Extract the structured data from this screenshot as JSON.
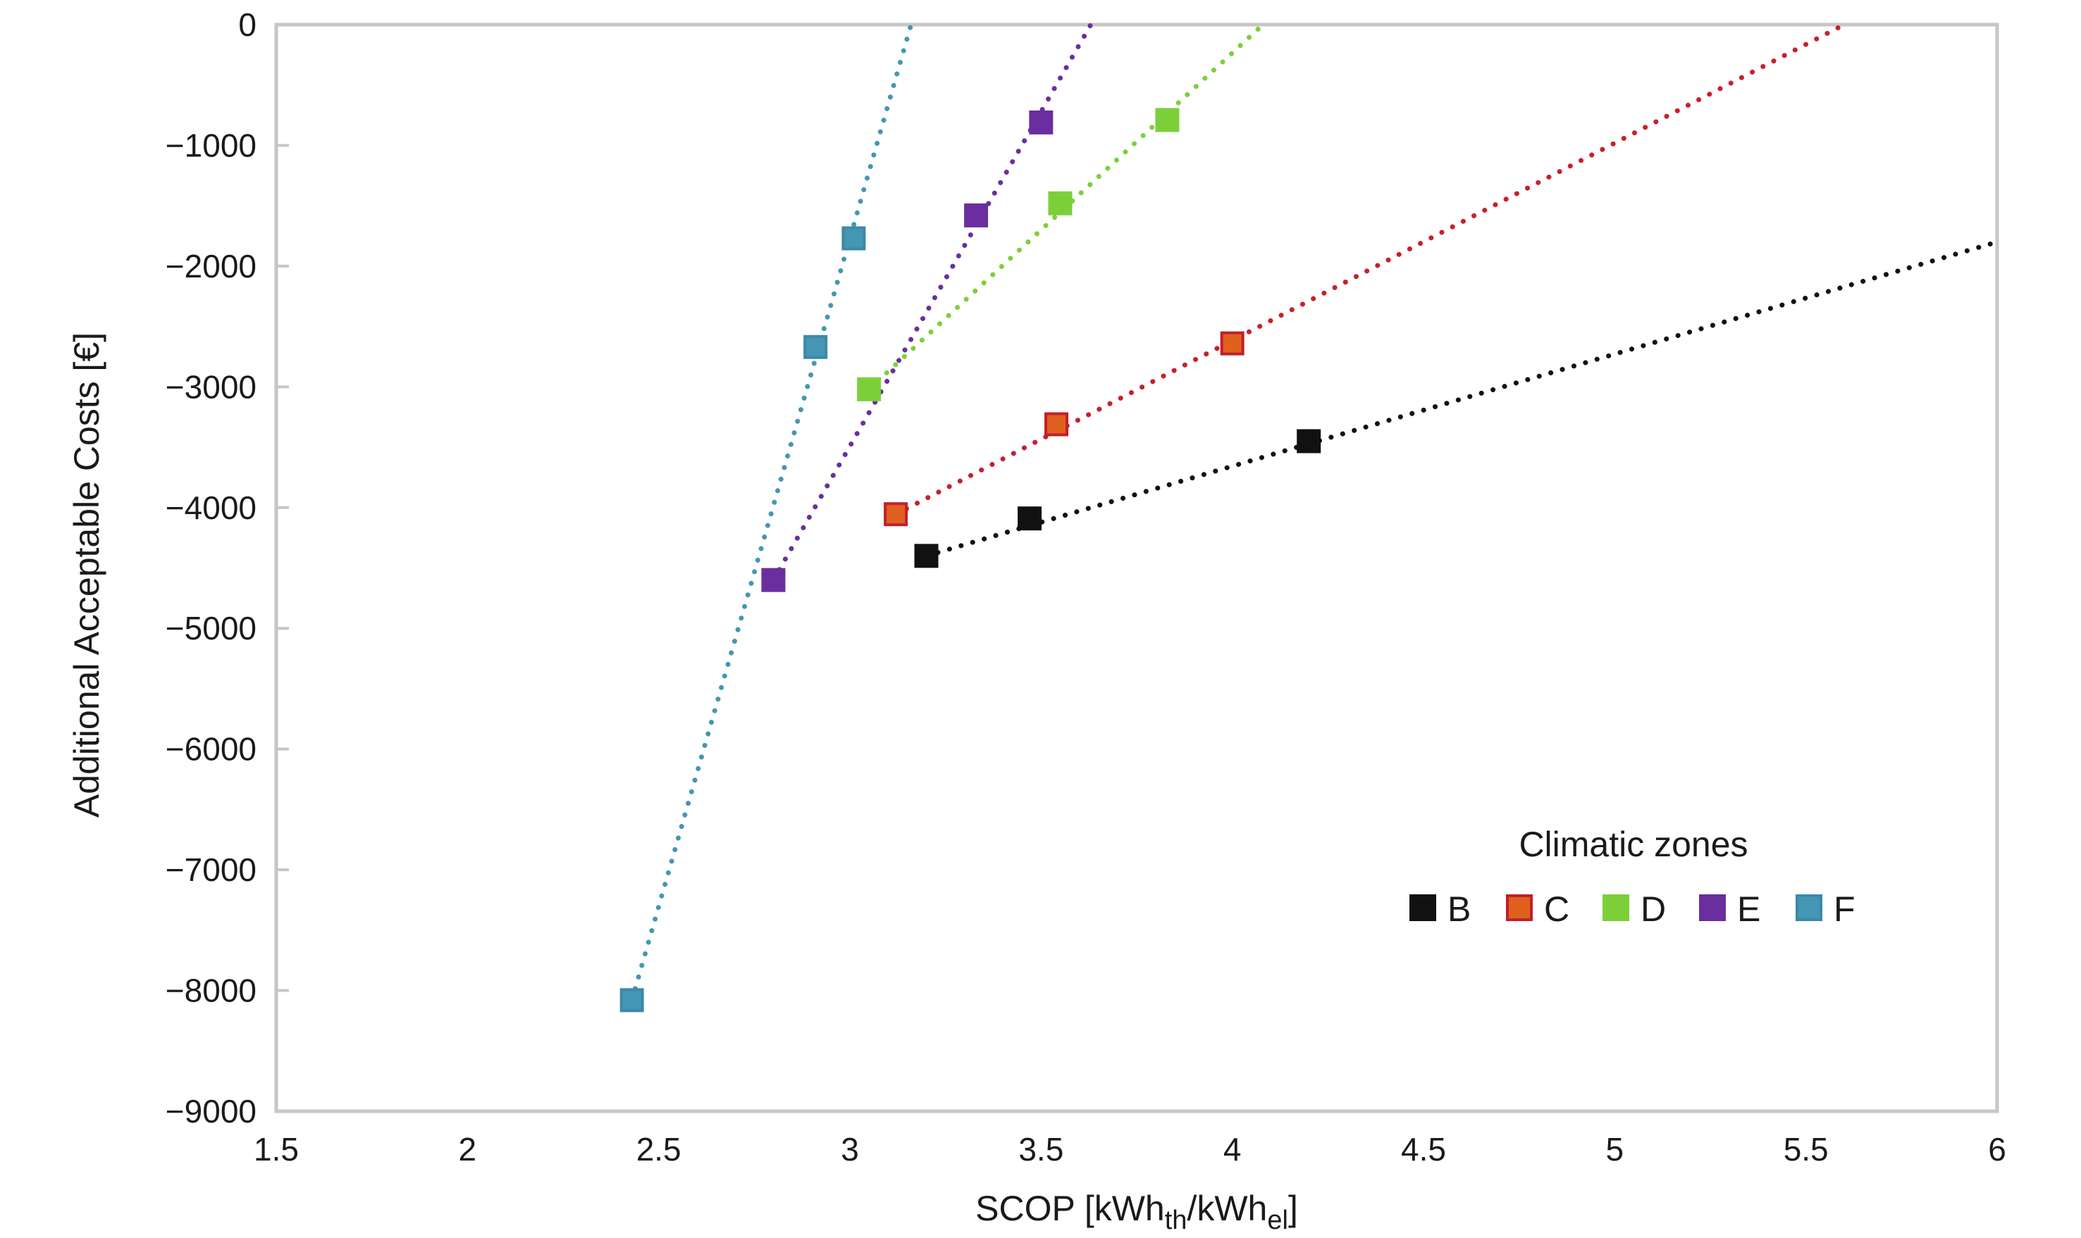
{
  "chart_data": {
    "type": "scatter",
    "title": "",
    "xlabel": "SCOP [kWh_th/kWh_el]",
    "xlabel_parts": {
      "main": "SCOP [kWh",
      "sub1": "th",
      "mid": "/kWh",
      "sub2": "el",
      "end": "]"
    },
    "ylabel": "Additional Acceptable Costs [€]",
    "xlim": [
      1.5,
      6
    ],
    "ylim": [
      -9000,
      0
    ],
    "x_ticks": [
      1.5,
      2,
      2.5,
      3,
      3.5,
      4,
      4.5,
      5,
      5.5,
      6
    ],
    "x_tick_labels": [
      "1.5",
      "2",
      "2.5",
      "3",
      "3.5",
      "4",
      "4.5",
      "5",
      "5.5",
      "6"
    ],
    "y_ticks": [
      0,
      -1000,
      -2000,
      -3000,
      -4000,
      -5000,
      -6000,
      -7000,
      -8000,
      -9000
    ],
    "y_tick_labels": [
      "0",
      "−1000",
      "−2000",
      "−3000",
      "−4000",
      "−5000",
      "−6000",
      "−7000",
      "−8000",
      "−9000"
    ],
    "grid": false,
    "legend": {
      "title": "Climatic zones",
      "position": "bottom-right"
    },
    "series": [
      {
        "name": "B",
        "color": "#111111",
        "border": "#111111",
        "points": [
          [
            3.2,
            -4400
          ],
          [
            3.47,
            -4090
          ],
          [
            4.2,
            -3450
          ]
        ],
        "trendline": {
          "style": "dotted",
          "from": [
            3.2,
            -4400
          ],
          "to": [
            6.0,
            -1800
          ]
        }
      },
      {
        "name": "C",
        "color": "#e0601f",
        "border": "#c0202a",
        "line_color": "#c8202a",
        "points": [
          [
            3.12,
            -4055
          ],
          [
            3.54,
            -3310
          ],
          [
            4.0,
            -2640
          ]
        ],
        "trendline": {
          "style": "dotted",
          "from": [
            3.12,
            -4055
          ],
          "to": [
            5.6,
            0
          ]
        }
      },
      {
        "name": "D",
        "color": "#7dcf3a",
        "border": "#7dcf3a",
        "points": [
          [
            3.05,
            -3020
          ],
          [
            3.55,
            -1480
          ],
          [
            3.83,
            -790
          ]
        ],
        "trendline": {
          "style": "dotted",
          "from": [
            3.05,
            -3020
          ],
          "to": [
            4.08,
            0
          ]
        }
      },
      {
        "name": "E",
        "color": "#6a2e9e",
        "border": "#6a2e9e",
        "points": [
          [
            2.8,
            -4600
          ],
          [
            3.33,
            -1580
          ],
          [
            3.5,
            -810
          ]
        ],
        "trendline": {
          "style": "dotted",
          "from": [
            2.8,
            -4600
          ],
          "to": [
            3.63,
            0
          ]
        }
      },
      {
        "name": "F",
        "color": "#4596b4",
        "border": "#3d89a6",
        "points": [
          [
            2.43,
            -8080
          ],
          [
            2.91,
            -2670
          ],
          [
            3.01,
            -1770
          ]
        ],
        "trendline": {
          "style": "dotted",
          "from": [
            2.43,
            -8080
          ],
          "to": [
            3.16,
            0
          ]
        }
      }
    ]
  }
}
